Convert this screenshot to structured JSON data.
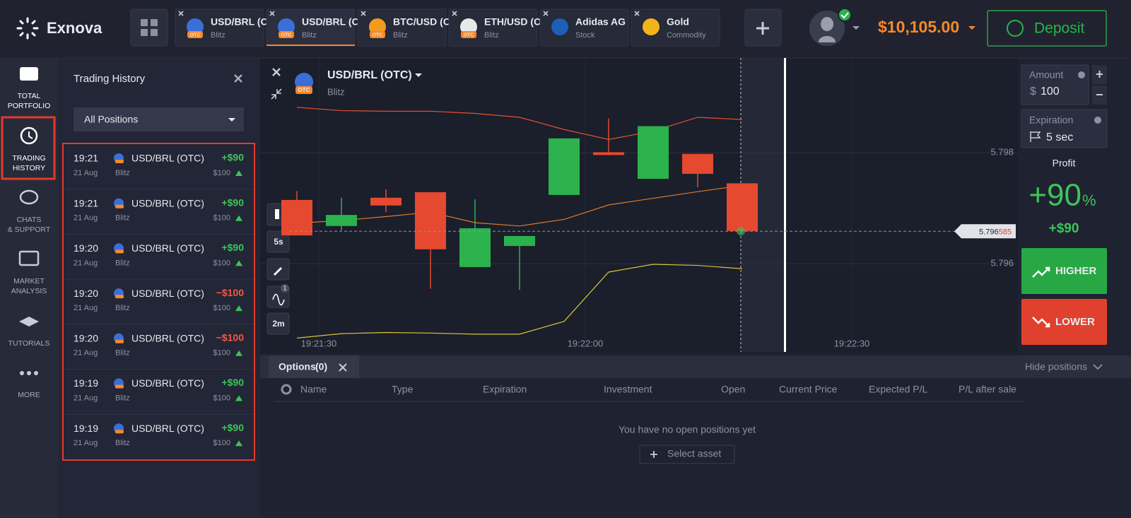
{
  "header": {
    "logo": "Exnova",
    "tabs": [
      {
        "name": "USD/BRL (O",
        "sub": "Blitz",
        "badge": "OTC"
      },
      {
        "name": "USD/BRL (O",
        "sub": "Blitz",
        "badge": "OTC"
      },
      {
        "name": "BTC/USD (O",
        "sub": "Blitz",
        "badge": "OTC"
      },
      {
        "name": "ETH/USD (O",
        "sub": "Blitz",
        "badge": "OTC"
      },
      {
        "name": "Adidas AG",
        "sub": "Stock"
      },
      {
        "name": "Gold",
        "sub": "Commodity"
      }
    ],
    "balance": "$10,105.00",
    "deposit": "Deposit"
  },
  "nav": [
    "TOTAL PORTFOLIO",
    "TRADING HISTORY",
    "CHATS & SUPPORT",
    "MARKET ANALYSIS",
    "TUTORIALS",
    "MORE"
  ],
  "history": {
    "title": "Trading History",
    "filter": "All Positions",
    "trades": [
      {
        "time": "19:21",
        "date": "21 Aug",
        "asset": "USD/BRL (OTC)",
        "type": "Blitz",
        "result": "+$90",
        "amount": "$100"
      },
      {
        "time": "19:21",
        "date": "21 Aug",
        "asset": "USD/BRL (OTC)",
        "type": "Blitz",
        "result": "+$90",
        "amount": "$100"
      },
      {
        "time": "19:20",
        "date": "21 Aug",
        "asset": "USD/BRL (OTC)",
        "type": "Blitz",
        "result": "+$90",
        "amount": "$100"
      },
      {
        "time": "19:20",
        "date": "21 Aug",
        "asset": "USD/BRL (OTC)",
        "type": "Blitz",
        "result": "−$100",
        "amount": "$100"
      },
      {
        "time": "19:20",
        "date": "21 Aug",
        "asset": "USD/BRL (OTC)",
        "type": "Blitz",
        "result": "−$100",
        "amount": "$100"
      },
      {
        "time": "19:19",
        "date": "21 Aug",
        "asset": "USD/BRL (OTC)",
        "type": "Blitz",
        "result": "+$90",
        "amount": "$100"
      },
      {
        "time": "19:19",
        "date": "21 Aug",
        "asset": "USD/BRL (OTC)",
        "type": "Blitz",
        "result": "+$90",
        "amount": "$100"
      }
    ]
  },
  "chart": {
    "asset": "USD/BRL (OTC)",
    "mode": "Blitz",
    "badge": "OTC",
    "tools": [
      "5s",
      "2m"
    ],
    "indicator_count": "1",
    "ylim": [
      5.79441,
      5.79971
    ],
    "yticks": [
      5.798,
      5.796
    ],
    "time_labels": [
      "19:21:30",
      "19:22:00",
      "19:22:30"
    ],
    "current_price": 5.796585,
    "up_color": "#2bb24c",
    "down_color": "#e5492f",
    "candles": [
      {
        "open": 5.79715,
        "high": 5.79731,
        "low": 5.79651,
        "close": 5.79651
      },
      {
        "open": 5.79668,
        "high": 5.79719,
        "low": 5.7966,
        "close": 5.79688
      },
      {
        "open": 5.79719,
        "high": 5.79734,
        "low": 5.79693,
        "close": 5.79705
      },
      {
        "open": 5.79729,
        "high": 5.79729,
        "low": 5.79555,
        "close": 5.79626
      },
      {
        "open": 5.79594,
        "high": 5.79716,
        "low": 5.79594,
        "close": 5.79664
      },
      {
        "open": 5.79632,
        "high": 5.7965,
        "low": 5.79553,
        "close": 5.7965
      },
      {
        "open": 5.79724,
        "high": 5.79826,
        "low": 5.79724,
        "close": 5.79826
      },
      {
        "open": 5.79801,
        "high": 5.79862,
        "low": 5.79796,
        "close": 5.79796
      },
      {
        "open": 5.79753,
        "high": 5.79848,
        "low": 5.79753,
        "close": 5.79848
      },
      {
        "open": 5.79798,
        "high": 5.79798,
        "low": 5.79738,
        "close": 5.79762
      },
      {
        "open": 5.79745,
        "high": 5.79745,
        "low": 5.79659,
        "close": 5.79659
      }
    ],
    "bands": {
      "upper": {
        "color": "#e0522e",
        "values": [
          5.79882,
          5.79876,
          5.79875,
          5.79875,
          5.79871,
          5.79864,
          5.79842,
          5.79824,
          5.79839,
          5.79864,
          5.7986
        ]
      },
      "middle": {
        "color": "#e07a2a",
        "values": [
          5.79673,
          5.79678,
          5.79685,
          5.79693,
          5.79674,
          5.79668,
          5.7968,
          5.79706,
          5.79718,
          5.7973,
          5.79741
        ]
      },
      "lower": {
        "color": "#d8c43a",
        "values": [
          5.79466,
          5.79474,
          5.79476,
          5.79475,
          5.79473,
          5.79473,
          5.79496,
          5.79585,
          5.79599,
          5.79597,
          5.79591
        ]
      }
    }
  },
  "trade_panel": {
    "amount_label": "Amount",
    "currency": "$",
    "amount": "100",
    "expiration_label": "Expiration",
    "expiration": "5 sec",
    "profit_label": "Profit",
    "profit_percent": "+90",
    "percent_sign": "%",
    "profit_amount": "+$90",
    "higher": "HIGHER",
    "lower": "LOWER"
  },
  "options": {
    "tab": "Options",
    "count": "(0)",
    "hide": "Hide positions",
    "columns": [
      "Name",
      "Type",
      "Expiration",
      "Investment",
      "Open",
      "Current Price",
      "Expected P/L",
      "P/L after sale"
    ],
    "empty": "You have no open positions yet",
    "select": "Select asset"
  }
}
